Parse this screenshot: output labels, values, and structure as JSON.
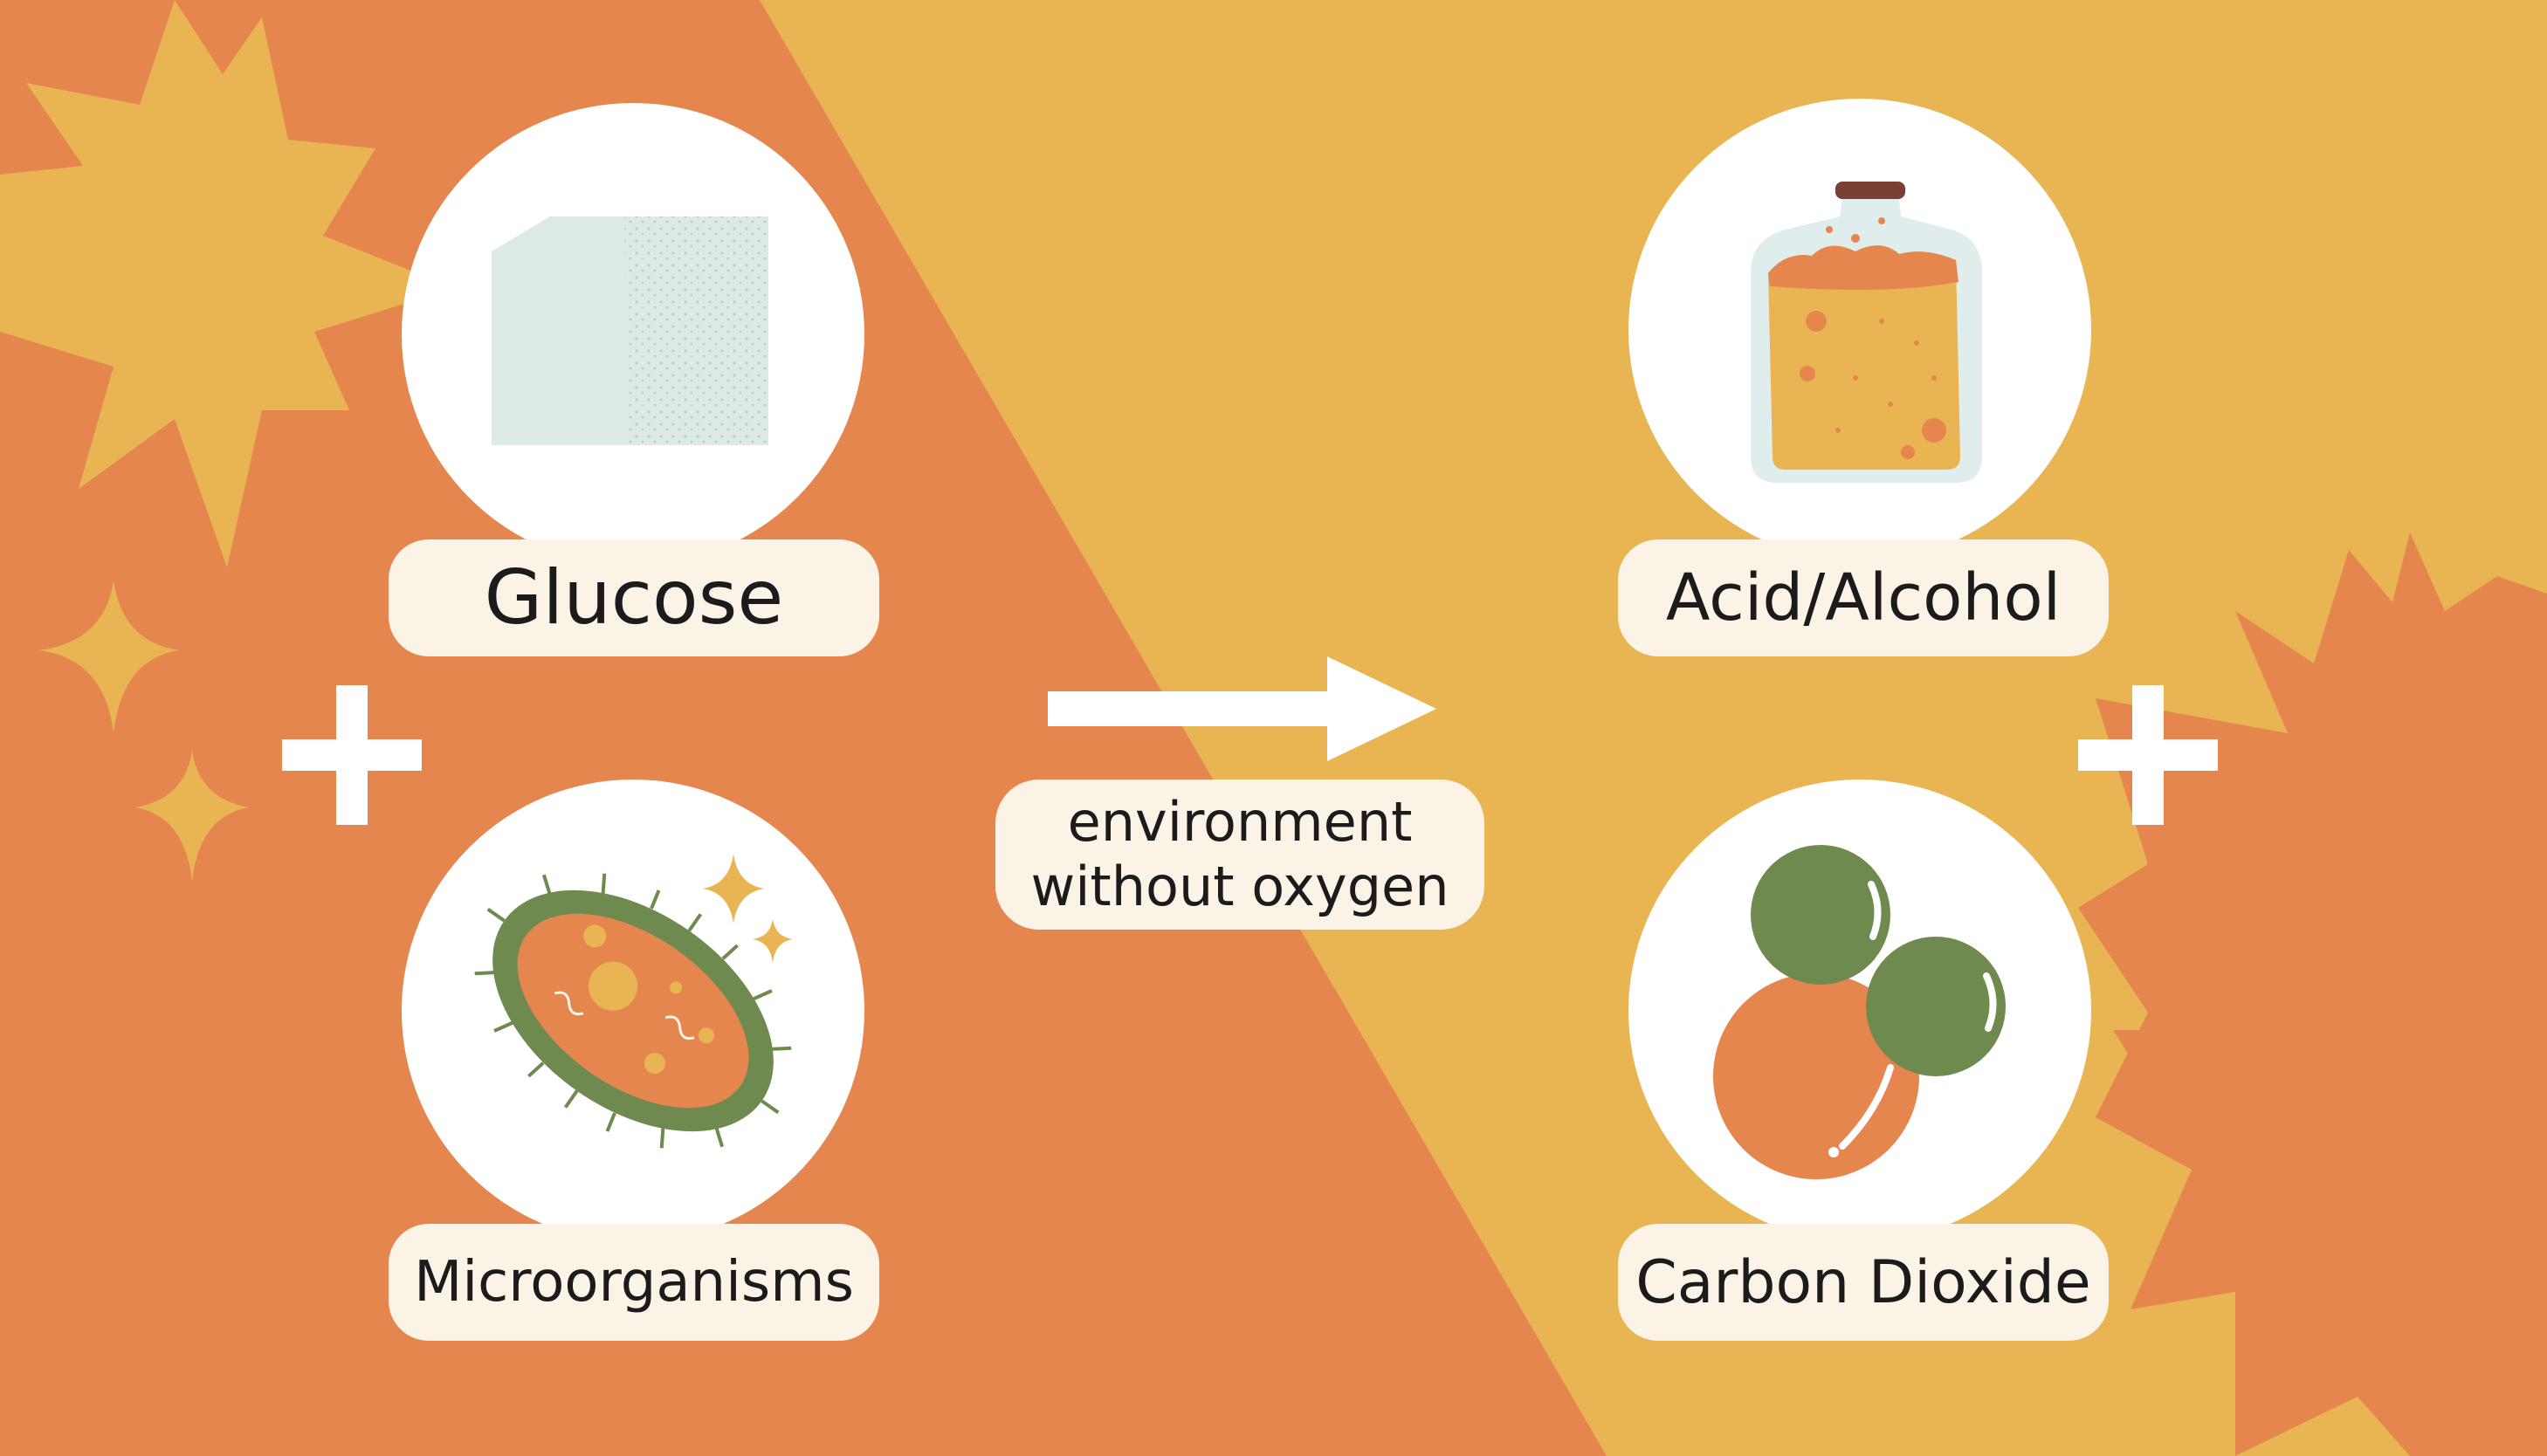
{
  "colors": {
    "orange_bg": "#e6864f",
    "yellow_bg": "#e9b552",
    "pill_bg": "#fbf3e5",
    "circle_bg": "#ffffff",
    "green": "#6f8a4e",
    "text": "#1b1b1b"
  },
  "inputs": {
    "glucose_label": "Glucose",
    "microorganisms_label": "Microorganisms"
  },
  "process": {
    "condition_line1": "environment",
    "condition_line2": "without oxygen"
  },
  "outputs": {
    "acid_alcohol_label": "Acid/Alcohol",
    "carbon_dioxide_label": "Carbon Dioxide"
  },
  "icons": [
    "sugar-cube-icon",
    "microorganism-icon",
    "jar-icon",
    "co2-molecule-icon",
    "plus-icon",
    "right-arrow-icon",
    "sparkle-icon",
    "starburst-icon"
  ]
}
